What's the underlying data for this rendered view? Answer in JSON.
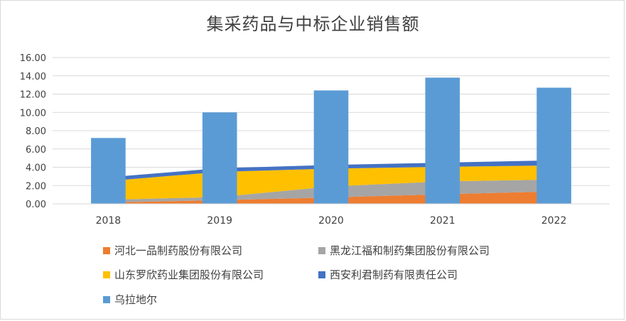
{
  "chart_data": {
    "type": "bar",
    "title": "集采药品与中标企业销售额",
    "categories": [
      "2018",
      "2019",
      "2020",
      "2021",
      "2022"
    ],
    "yticks": [
      "0.00",
      "2.00",
      "4.00",
      "6.00",
      "8.00",
      "10.00",
      "12.00",
      "14.00",
      "16.00"
    ],
    "ylim": [
      0,
      16
    ],
    "grid": true,
    "legend_position": "bottom",
    "bar_series": {
      "name": "乌拉地尔",
      "color": "#5b9bd5",
      "values": [
        7.2,
        10.0,
        12.4,
        13.8,
        12.7
      ]
    },
    "area_series": [
      {
        "name": "河北一品制药股份有限公司",
        "color": "#ed7d31",
        "values": [
          0.15,
          0.4,
          0.7,
          1.05,
          1.35
        ]
      },
      {
        "name": "黑龙江福和制药集团股份有限公司",
        "color": "#a5a5a5",
        "values": [
          0.3,
          0.35,
          1.2,
          1.4,
          1.3
        ]
      },
      {
        "name": "山东罗欣药业集团股份有限公司",
        "color": "#ffc000",
        "values": [
          2.05,
          2.75,
          1.95,
          1.6,
          1.55
        ]
      },
      {
        "name": "西安利君制药有限责任公司",
        "color": "#4472c4",
        "values": [
          0.4,
          0.4,
          0.4,
          0.45,
          0.55
        ]
      }
    ]
  }
}
